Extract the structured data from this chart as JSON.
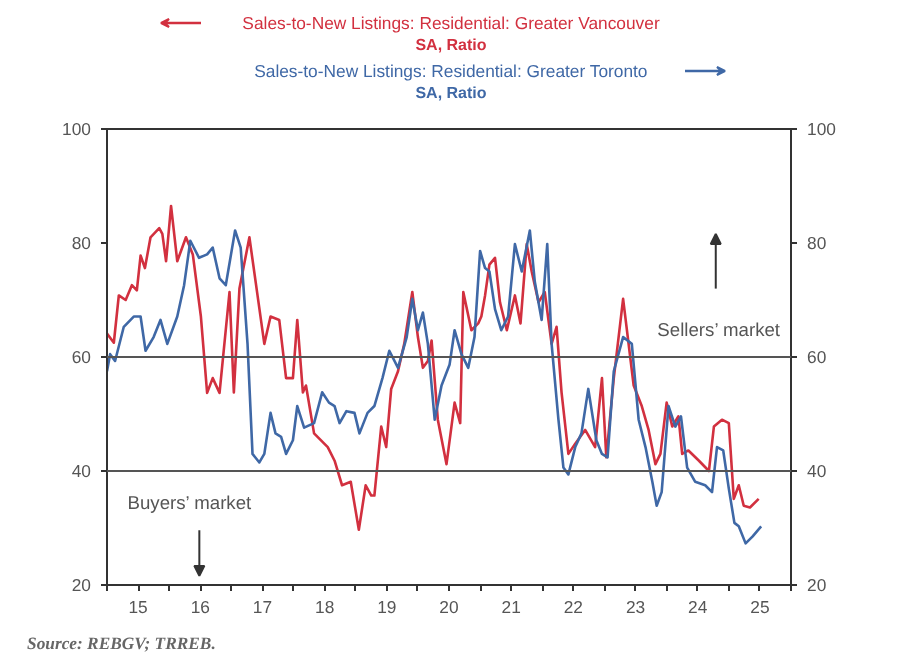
{
  "chart_data": {
    "type": "line",
    "x": [
      14.5,
      14.61,
      14.69,
      14.8,
      14.9,
      14.98,
      15.04,
      15.11,
      15.2,
      15.34,
      15.39,
      15.45,
      15.53,
      15.63,
      15.77,
      15.88,
      16.01,
      16.11,
      16.2,
      16.31,
      16.47,
      16.54,
      16.63,
      16.79,
      17.03,
      17.13,
      17.27,
      17.38,
      17.49,
      17.56,
      17.65,
      17.7,
      17.83,
      18.05,
      18.16,
      18.28,
      18.42,
      18.55,
      18.66,
      18.75,
      18.8,
      18.91,
      18.99,
      19.07,
      19.18,
      19.28,
      19.41,
      19.5,
      19.58,
      19.66,
      19.72,
      19.82,
      19.96,
      20.09,
      20.18,
      20.23,
      20.36,
      20.47,
      20.52,
      20.58,
      20.65,
      20.74,
      20.82,
      20.93,
      21.06,
      21.15,
      21.25,
      21.33,
      21.44,
      21.54,
      21.65,
      21.73,
      21.81,
      21.92,
      22.03,
      22.19,
      22.35,
      22.46,
      22.53,
      22.65,
      22.8,
      22.97,
      23.1,
      23.21,
      23.32,
      23.4,
      23.5,
      23.59,
      23.69,
      23.75,
      23.85,
      24.02,
      24.18,
      24.26,
      24.39,
      24.5,
      24.58,
      24.66,
      24.74,
      24.84,
      24.98
    ],
    "series": [
      {
        "name": "Sales-to-New Listings: Residential: Greater Vancouver\nSA, Ratio",
        "color": "#d2303f",
        "values": [
          64.1,
          62.5,
          70.8,
          70,
          72.6,
          71.7,
          77.8,
          75.6,
          81,
          82.6,
          81.6,
          76.8,
          86.5,
          76.8,
          81,
          78,
          67.1,
          53.7,
          56.3,
          53.7,
          71.4,
          53.8,
          72,
          81,
          62.3,
          67.1,
          66.5,
          56.3,
          56.3,
          66.5,
          53.8,
          55,
          46.6,
          44.2,
          41.8,
          37.5,
          38.1,
          29.7,
          37.5,
          35.7,
          35.7,
          47.8,
          44.2,
          54.4,
          57.5,
          62.3,
          71.4,
          63.5,
          58.1,
          59.3,
          62.9,
          49,
          41.2,
          52,
          48.4,
          71.4,
          64.7,
          65.9,
          67.1,
          70.8,
          76.2,
          77.4,
          69.6,
          64.7,
          70.8,
          65.9,
          79.8,
          75,
          69.6,
          71.4,
          62.3,
          65.3,
          53.8,
          43,
          44.8,
          47.2,
          44.2,
          56.3,
          42.4,
          56.3,
          70.2,
          55,
          51.4,
          47.2,
          41.2,
          43,
          52,
          47.8,
          49.6,
          43,
          43.6,
          41.8,
          40,
          47.8,
          49,
          48.4,
          35.1,
          37.5,
          33.9,
          33.6,
          35.1
        ]
      },
      {
        "name": "Sales-to-New Listings: Residential: Greater Toronto\nSA, Ratio",
        "color": "#3f68a6",
        "axis": "y2",
        "x": [
          14.5,
          14.55,
          14.63,
          14.77,
          14.93,
          15.04,
          15.12,
          15.25,
          15.36,
          15.47,
          15.63,
          15.74,
          15.84,
          15.98,
          16.11,
          16.2,
          16.31,
          16.41,
          16.56,
          16.65,
          16.76,
          16.84,
          16.95,
          17.03,
          17.13,
          17.21,
          17.3,
          17.38,
          17.49,
          17.56,
          17.67,
          17.83,
          17.96,
          18.07,
          18.16,
          18.24,
          18.35,
          18.48,
          18.56,
          18.69,
          18.8,
          18.93,
          19.04,
          19.18,
          19.32,
          19.41,
          19.5,
          19.58,
          19.66,
          19.77,
          19.88,
          20.01,
          20.09,
          20.2,
          20.31,
          20.41,
          20.5,
          20.58,
          20.65,
          20.74,
          20.84,
          20.95,
          21.06,
          21.17,
          21.3,
          21.38,
          21.49,
          21.58,
          21.65,
          21.76,
          21.84,
          21.92,
          22.03,
          22.13,
          22.24,
          22.37,
          22.46,
          22.55,
          22.65,
          22.8,
          22.94,
          23.05,
          23.16,
          23.27,
          23.34,
          23.42,
          23.53,
          23.64,
          23.73,
          23.83,
          23.96,
          24.12,
          24.23,
          24.31,
          24.41,
          24.5,
          24.59,
          24.66,
          24.77,
          24.88,
          25.02
        ],
        "values": [
          57.5,
          60.5,
          59.3,
          65.3,
          67.1,
          67.1,
          61.1,
          63.5,
          66.5,
          62.3,
          67.1,
          72.6,
          80.4,
          77.4,
          78,
          79.2,
          73.8,
          72.6,
          82.2,
          79.2,
          62.3,
          43,
          41.5,
          43,
          50.2,
          46.6,
          46,
          43,
          45.4,
          51.4,
          47.6,
          48.4,
          53.8,
          52,
          51.4,
          48.4,
          50.5,
          50.2,
          46.6,
          50.2,
          51.4,
          56.3,
          61.1,
          58.1,
          63.5,
          70.2,
          64.7,
          67.8,
          62.3,
          49,
          55,
          58.7,
          64.7,
          60.5,
          58.1,
          63.5,
          78.6,
          75.6,
          75,
          68.4,
          64.7,
          67.1,
          79.8,
          75,
          82.2,
          73.2,
          66.5,
          79.8,
          62.3,
          49,
          40.6,
          39.4,
          44.2,
          46.6,
          54.4,
          45.4,
          43,
          42.4,
          57.5,
          63.5,
          62.3,
          49,
          44.2,
          38.1,
          33.9,
          36.3,
          51.4,
          47.8,
          49.6,
          40.6,
          38.1,
          37.5,
          36.3,
          44.2,
          43.6,
          36.9,
          30.9,
          30.3,
          27.3,
          28.5,
          30.3
        ]
      }
    ],
    "xlim": [
      14.5,
      25.5
    ],
    "xticks": [
      {
        "value": 14.5,
        "label": null
      },
      15,
      {
        "value": 15.5,
        "label": null
      },
      16,
      {
        "value": 16.5,
        "label": null
      },
      17,
      {
        "value": 17.5,
        "label": null
      },
      18,
      {
        "value": 18.5,
        "label": null
      },
      19,
      {
        "value": 19.5,
        "label": null
      },
      20,
      {
        "value": 20.5,
        "label": null
      },
      21,
      {
        "value": 21.5,
        "label": null
      },
      22,
      {
        "value": 22.5,
        "label": null
      },
      23,
      {
        "value": 23.5,
        "label": null
      },
      24,
      {
        "value": 24.5,
        "label": null
      },
      25,
      {
        "value": 25.5,
        "label": null
      }
    ],
    "ylim": [
      20,
      100
    ],
    "yticks": [
      20,
      40,
      60,
      80,
      100
    ],
    "y2lim": [
      20,
      100
    ],
    "y2ticks": [
      20,
      40,
      60,
      80,
      100
    ],
    "ref_lines": [
      {
        "axis": "y",
        "value": 60,
        "color": "#555555"
      },
      {
        "axis": "y",
        "value": 40,
        "color": "#555555"
      }
    ],
    "annotations": [
      "Sellers’ market",
      "Buyers’ market",
      "Source: REBGV; TRREB."
    ],
    "legend": "top",
    "grid": false,
    "marker": "none",
    "line_style": "solid"
  }
}
